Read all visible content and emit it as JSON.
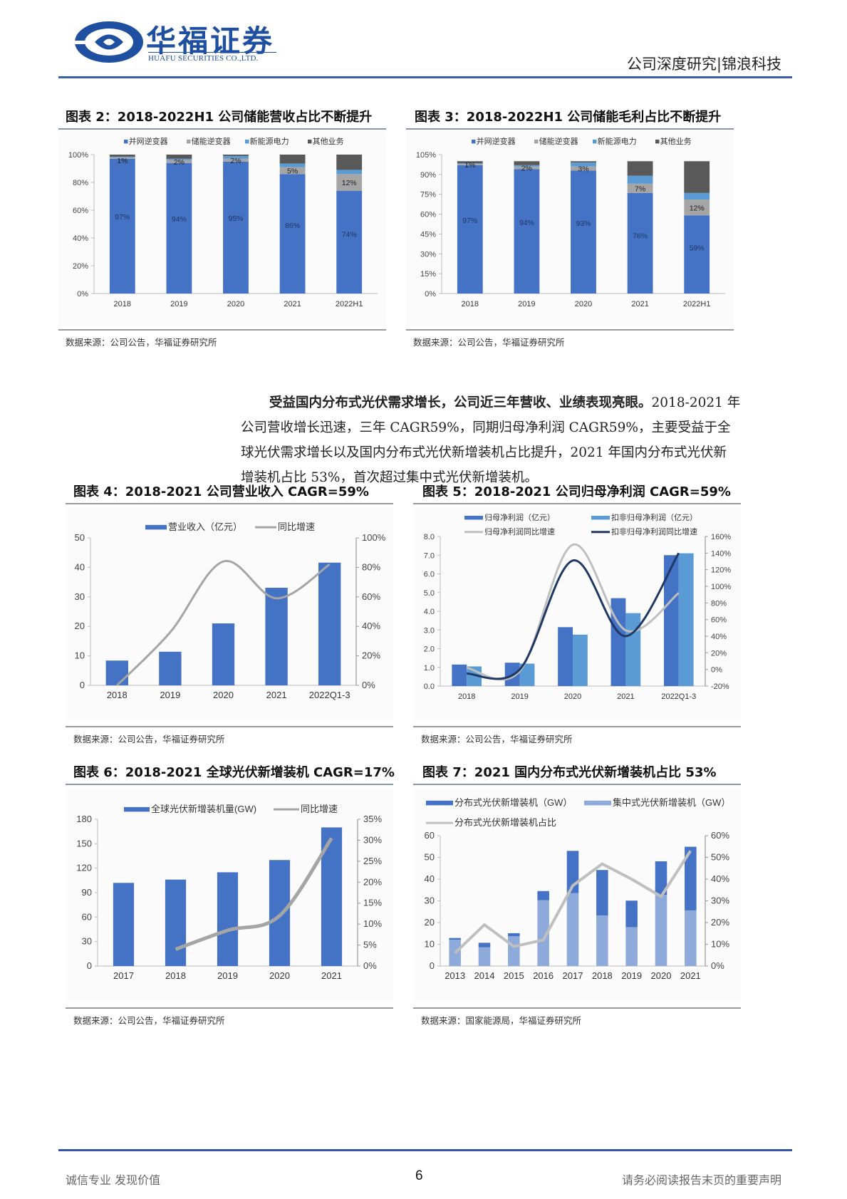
{
  "header": {
    "logo_cn": "华福证券",
    "logo_en": "HUAFU SECURITIES CO.,LTD.",
    "report_type": "公司深度研究|锦浪科技",
    "brand_color": "#1f4fa0"
  },
  "figures": {
    "fig2": {
      "title": "图表 2：2018-2022H1 公司储能营收占比不断提升",
      "source": "数据来源：公司公告，华福证券研究所"
    },
    "fig3": {
      "title": "图表 3：2018-2022H1 公司储能毛利占比不断提升",
      "source": "数据来源：公司公告，华福证券研究所"
    },
    "fig4": {
      "title": "图表 4：2018-2021 公司营业收入 CAGR=59%",
      "source": "数据来源：公司公告，华福证券研究所"
    },
    "fig5": {
      "title": "图表 5：2018-2021 公司归母净利润 CAGR=59%",
      "source": "数据来源：公司公告，华福证券研究所"
    },
    "fig6": {
      "title": "图表 6：2018-2021 全球光伏新增装机 CAGR=17%",
      "source": "数据来源：公司公告，华福证券研究所"
    },
    "fig7": {
      "title": "图表 7：2021 国内分布式光伏新增装机占比 53%",
      "source": "数据来源：国家能源局，华福证券研究所"
    }
  },
  "paragraph": {
    "lead": "受益国内分布式光伏需求增长，公司近三年营收、业绩表现亮眼。",
    "line1_rest": "2018-2021 年",
    "line2": "公司营收增长迅速，三年 CAGR59%，同期归母净利润 CAGR59%，主要受益于全",
    "line3": "球光伏需求增长以及国内分布式光伏新增装机占比提升，2021 年国内分布式光伏新",
    "line4": "增装机占比 53%，首次超过集中式光伏新增装机。"
  },
  "footer": {
    "slogan": "诚信专业  发现价值",
    "page_number": "6",
    "disclaimer": "请务必阅读报告末页的重要声明"
  },
  "colors": {
    "blue": "#4472c4",
    "light_gray": "#a5a5a5",
    "light_blue": "#5b9bd5",
    "dark_gray": "#595959",
    "pale_blue": "#8eaadb",
    "line_gray": "#bfbfbf",
    "navy": "#1f3864"
  },
  "chart_data": [
    {
      "id": "fig2",
      "type": "bar",
      "stacked": true,
      "title": "2018-2022H1 公司储能营收占比不断提升",
      "categories": [
        "2018",
        "2019",
        "2020",
        "2021",
        "2022H1"
      ],
      "series": [
        {
          "name": "并网逆变器",
          "values": [
            97,
            94,
            95,
            86,
            74
          ]
        },
        {
          "name": "储能逆变器",
          "values": [
            1,
            2,
            2,
            5,
            12
          ]
        },
        {
          "name": "新能源电力",
          "values": [
            0.5,
            1,
            2,
            2.5,
            3
          ]
        },
        {
          "name": "其他业务",
          "values": [
            1.5,
            3,
            1,
            6.5,
            11
          ]
        }
      ],
      "labels": {
        "main": [
          "97%",
          "94%",
          "95%",
          "86%",
          "74%"
        ],
        "storage": [
          "1%",
          "2%",
          "2%",
          "5%",
          "12%"
        ]
      },
      "ylim": [
        0,
        100
      ],
      "yticks": [
        "0%",
        "20%",
        "40%",
        "60%",
        "80%",
        "100%"
      ],
      "legend_position": "top"
    },
    {
      "id": "fig3",
      "type": "bar",
      "stacked": true,
      "title": "2018-2022H1 公司储能毛利占比不断提升",
      "categories": [
        "2018",
        "2019",
        "2020",
        "2021",
        "2022H1"
      ],
      "series": [
        {
          "name": "并网逆变器",
          "values": [
            97,
            94,
            93,
            76,
            59
          ]
        },
        {
          "name": "储能逆变器",
          "values": [
            1,
            2,
            3,
            7,
            12
          ]
        },
        {
          "name": "新能源电力",
          "values": [
            0.5,
            1,
            3,
            6,
            5
          ]
        },
        {
          "name": "其他业务",
          "values": [
            1.5,
            3,
            1,
            11,
            24
          ]
        }
      ],
      "labels": {
        "main": [
          "97%",
          "94%",
          "93%",
          "76%",
          "59%"
        ],
        "storage": [
          "1%",
          "2%",
          "3%",
          "7%",
          "12%"
        ]
      },
      "ylim": [
        0,
        105
      ],
      "yticks": [
        "0%",
        "15%",
        "30%",
        "45%",
        "60%",
        "75%",
        "90%",
        "105%"
      ],
      "legend_position": "top"
    },
    {
      "id": "fig4",
      "type": "bar",
      "title": "2018-2021 公司营业收入 CAGR=59%",
      "categories": [
        "2018",
        "2019",
        "2020",
        "2021",
        "2022Q1-3"
      ],
      "series": [
        {
          "name": "营业收入（亿元）",
          "type": "bar",
          "axis": "left",
          "values": [
            8.4,
            11.4,
            21.0,
            33.1,
            41.6
          ]
        },
        {
          "name": "同比增速",
          "type": "line",
          "axis": "right",
          "values": [
            0,
            36,
            84,
            59,
            82
          ]
        }
      ],
      "ylim": [
        0,
        50
      ],
      "yticks": [
        "0",
        "10",
        "20",
        "30",
        "40",
        "50"
      ],
      "y2lim": [
        0,
        100
      ],
      "y2ticks": [
        "0%",
        "20%",
        "40%",
        "60%",
        "80%",
        "100%"
      ],
      "legend_position": "top"
    },
    {
      "id": "fig5",
      "type": "bar",
      "title": "2018-2021 公司归母净利润 CAGR=59%",
      "categories": [
        "2018",
        "2019",
        "2020",
        "2021",
        "2022Q1-3"
      ],
      "series": [
        {
          "name": "归母净利润（亿元）",
          "type": "bar",
          "axis": "left",
          "values": [
            1.15,
            1.25,
            3.15,
            4.7,
            7.0
          ]
        },
        {
          "name": "扣非归母净利润（亿元）",
          "type": "bar",
          "axis": "left",
          "values": [
            1.05,
            1.2,
            2.75,
            3.9,
            7.1
          ]
        },
        {
          "name": "归母净利润同比增速",
          "type": "line",
          "axis": "right",
          "values": [
            2,
            -2,
            150,
            47,
            92
          ]
        },
        {
          "name": "扣非归母净利润同比增速",
          "type": "line",
          "axis": "right",
          "values": [
            -5,
            0,
            131,
            40,
            140
          ]
        }
      ],
      "ylim": [
        0,
        8
      ],
      "yticks": [
        "0.0",
        "1.0",
        "2.0",
        "3.0",
        "4.0",
        "5.0",
        "6.0",
        "7.0",
        "8.0"
      ],
      "y2lim": [
        -20,
        160
      ],
      "y2ticks": [
        "-20%",
        "0%",
        "20%",
        "40%",
        "60%",
        "80%",
        "100%",
        "120%",
        "140%",
        "160%"
      ],
      "legend_position": "top"
    },
    {
      "id": "fig6",
      "type": "bar",
      "title": "2018-2021 全球光伏新增装机 CAGR=17%",
      "categories": [
        "2017",
        "2018",
        "2019",
        "2020",
        "2021"
      ],
      "series": [
        {
          "name": "全球光伏新增装机量(GW)",
          "type": "bar",
          "axis": "left",
          "values": [
            102,
            106,
            115,
            130,
            170
          ]
        },
        {
          "name": "同比增速",
          "type": "line",
          "axis": "right",
          "values": [
            null,
            4,
            8.5,
            12,
            30.5
          ]
        }
      ],
      "ylim": [
        0,
        180
      ],
      "yticks": [
        "0",
        "30",
        "60",
        "90",
        "120",
        "150",
        "180"
      ],
      "y2lim": [
        0,
        35
      ],
      "y2ticks": [
        "0%",
        "5%",
        "10%",
        "15%",
        "20%",
        "25%",
        "30%",
        "35%"
      ],
      "legend_position": "top"
    },
    {
      "id": "fig7",
      "type": "bar",
      "stacked": true,
      "title": "2021 国内分布式光伏新增装机占比 53%",
      "categories": [
        "2013",
        "2014",
        "2015",
        "2016",
        "2017",
        "2018",
        "2019",
        "2020",
        "2021"
      ],
      "series": [
        {
          "name": "集中式光伏新增装机（GW）",
          "type": "bar",
          "axis": "left",
          "values": [
            12.1,
            8.6,
            13.7,
            30.3,
            33.6,
            23.3,
            17.9,
            32.7,
            25.6
          ]
        },
        {
          "name": "分布式光伏新增装机（GW）",
          "type": "bar",
          "axis": "left",
          "values": [
            0.8,
            2.1,
            1.4,
            4.2,
            19.4,
            20.9,
            12.2,
            15.5,
            29.3
          ]
        },
        {
          "name": "分布式光伏新增装机占比",
          "type": "line",
          "axis": "right",
          "values": [
            6,
            19,
            9,
            12,
            37,
            47,
            40,
            32,
            53
          ]
        }
      ],
      "ylim": [
        0,
        60
      ],
      "yticks": [
        "0",
        "10",
        "20",
        "30",
        "40",
        "50",
        "60"
      ],
      "y2lim": [
        0,
        60
      ],
      "y2ticks": [
        "0%",
        "10%",
        "20%",
        "30%",
        "40%",
        "50%",
        "60%"
      ],
      "legend_position": "top"
    }
  ]
}
